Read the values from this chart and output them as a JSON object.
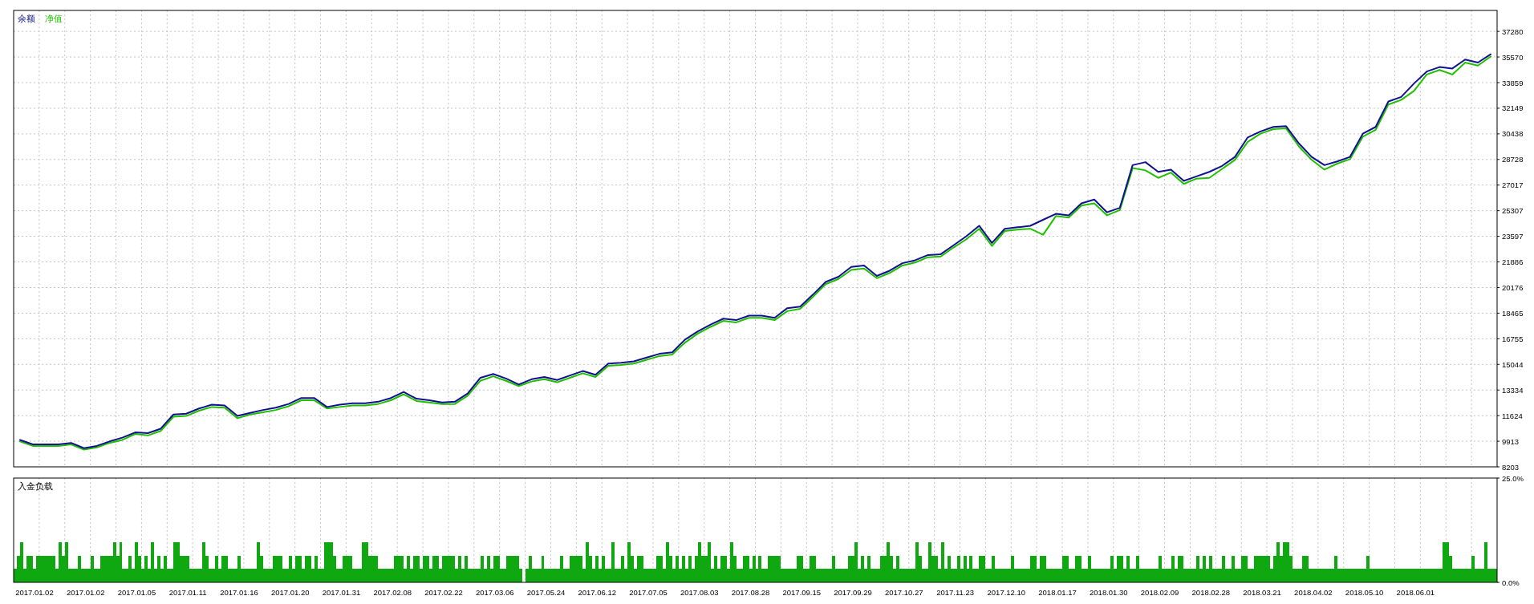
{
  "chart_data": [
    {
      "type": "line",
      "categories": [
        null,
        "2017.01.02",
        null,
        null,
        null,
        "2017.01.02",
        null,
        null,
        null,
        "2017.01.05",
        null,
        null,
        null,
        "2017.01.11",
        null,
        null,
        null,
        "2017.01.16",
        null,
        null,
        null,
        "2017.01.20",
        null,
        null,
        null,
        "2017.01.31",
        null,
        null,
        null,
        "2017.02.08",
        null,
        null,
        null,
        "2017.02.22",
        null,
        null,
        null,
        "2017.03.06",
        null,
        null,
        null,
        "2017.05.24",
        null,
        null,
        null,
        "2017.06.12",
        null,
        null,
        null,
        "2017.07.05",
        null,
        null,
        null,
        "2017.08.03",
        null,
        null,
        null,
        "2017.08.28",
        null,
        null,
        null,
        "2017.09.15",
        null,
        null,
        null,
        "2017.09.29",
        null,
        null,
        null,
        "2017.10.27",
        null,
        null,
        null,
        "2017.11.23",
        null,
        null,
        null,
        "2017.12.10",
        null,
        null,
        null,
        "2018.01.17",
        null,
        null,
        null,
        "2018.01.30",
        null,
        null,
        null,
        "2018.02.09",
        null,
        null,
        null,
        "2018.02.28",
        null,
        null,
        null,
        "2018.03.21",
        null,
        null,
        null,
        "2018.04.02",
        null,
        null,
        null,
        "2018.05.10",
        null,
        null,
        null,
        "2018.06.01",
        null,
        null,
        null,
        null,
        null,
        null
      ],
      "series": [
        {
          "name": "余额",
          "color": "#101090",
          "values": [
            10000,
            9700,
            9700,
            9700,
            9800,
            9450,
            9600,
            9900,
            10150,
            10500,
            10450,
            10750,
            11700,
            11750,
            12100,
            12350,
            12300,
            11600,
            11800,
            12000,
            12150,
            12400,
            12800,
            12800,
            12200,
            12350,
            12450,
            12450,
            12550,
            12800,
            13200,
            12750,
            12650,
            12500,
            12550,
            13100,
            14150,
            14400,
            14100,
            13700,
            14050,
            14200,
            14000,
            14300,
            14600,
            14350,
            15100,
            15150,
            15250,
            15500,
            15750,
            15850,
            16700,
            17250,
            17700,
            18100,
            18000,
            18300,
            18300,
            18150,
            18800,
            18900,
            19700,
            20550,
            20900,
            21550,
            21650,
            20950,
            21300,
            21800,
            22000,
            22350,
            22400,
            23000,
            23600,
            24300,
            23150,
            24100,
            24200,
            24300,
            24700,
            25100,
            25000,
            25800,
            26050,
            25200,
            25500,
            28350,
            28550,
            27900,
            28050,
            27300,
            27600,
            27900,
            28300,
            28900,
            30200,
            30600,
            30900,
            30950,
            29800,
            28900,
            28350,
            28600,
            28900,
            30450,
            30900,
            32600,
            32900,
            33800,
            34600,
            34900,
            34800,
            35400,
            35200,
            35750
          ]
        },
        {
          "name": "净值",
          "color": "#20c000",
          "values": [
            9900,
            9600,
            9600,
            9600,
            9700,
            9350,
            9500,
            9800,
            10000,
            10400,
            10300,
            10600,
            11550,
            11600,
            11950,
            12200,
            12150,
            11450,
            11700,
            11850,
            12000,
            12250,
            12650,
            12650,
            12100,
            12200,
            12300,
            12300,
            12400,
            12650,
            13050,
            12600,
            12500,
            12400,
            12400,
            12950,
            13950,
            14250,
            13950,
            13600,
            13900,
            14050,
            13850,
            14150,
            14450,
            14200,
            14950,
            15000,
            15100,
            15350,
            15600,
            15700,
            16500,
            17100,
            17550,
            17950,
            17850,
            18150,
            18150,
            18000,
            18600,
            18750,
            19550,
            20400,
            20750,
            21350,
            21450,
            20800,
            21150,
            21650,
            21850,
            22200,
            22250,
            22850,
            23400,
            24100,
            22950,
            23950,
            24050,
            24100,
            23700,
            24950,
            24850,
            25650,
            25800,
            25000,
            25350,
            28150,
            28000,
            27500,
            27850,
            27100,
            27450,
            27500,
            28100,
            28700,
            29900,
            30450,
            30750,
            30800,
            29600,
            28700,
            28050,
            28450,
            28750,
            30250,
            30700,
            32400,
            32700,
            33300,
            34400,
            34700,
            34400,
            35200,
            35000,
            35600
          ]
        }
      ],
      "ylim": [
        8203,
        38680
      ],
      "yticks": [
        8203,
        9913,
        11624,
        13334,
        15044,
        16755,
        18465,
        20176,
        21886,
        23597,
        25307,
        27017,
        28728,
        30438,
        32149,
        33859,
        35570,
        37280
      ],
      "grid": true,
      "legend": "top left",
      "tick_labels": "y"
    },
    {
      "type": "bar",
      "title": "入金负载",
      "categories": [
        null,
        null,
        null,
        null,
        null,
        null,
        "2017.01.02",
        null,
        null,
        null,
        null,
        null,
        null,
        null,
        null,
        null,
        null,
        null,
        null,
        null,
        null,
        null,
        "2017.01.02",
        null,
        null,
        null,
        null,
        null,
        null,
        null,
        null,
        null,
        null,
        null,
        null,
        null,
        null,
        null,
        "2017.01.05",
        null,
        null,
        null,
        null,
        null,
        null,
        null,
        null,
        null,
        null,
        null,
        null,
        null,
        null,
        null,
        "2017.01.11",
        null,
        null,
        null,
        null,
        null,
        null,
        null,
        null,
        null,
        null,
        null,
        null,
        null,
        null,
        null,
        "2017.01.16",
        null,
        null,
        null,
        null,
        null,
        null,
        null,
        null,
        null,
        null,
        null,
        null,
        null,
        null,
        null,
        "2017.01.20",
        null,
        null,
        null,
        null,
        null,
        null,
        null,
        null,
        null,
        null,
        null,
        null,
        null,
        null,
        null,
        "2017.01.31",
        null,
        null,
        null,
        null,
        null,
        null,
        null,
        null,
        null,
        null,
        null,
        null,
        null,
        null,
        null,
        "2017.02.08",
        null,
        null,
        null,
        null,
        null,
        null,
        null,
        null,
        null,
        null,
        null,
        null,
        null,
        null,
        null,
        "2017.02.22",
        null,
        null,
        null,
        null,
        null,
        null,
        null,
        null,
        null,
        null,
        null,
        null,
        null,
        null,
        null,
        "2017.03.06",
        null,
        null,
        null,
        null,
        null,
        null,
        null,
        null,
        null,
        null,
        null,
        null,
        null,
        null,
        null,
        "2017.05.24",
        null,
        null,
        null,
        null,
        null,
        null,
        null,
        null,
        null,
        null,
        null,
        null,
        null,
        null,
        null,
        "2017.06.12",
        null,
        null,
        null,
        null,
        null,
        null,
        null,
        null,
        null,
        null,
        null,
        null,
        null,
        null,
        null,
        "2017.07.05",
        null,
        null,
        null,
        null,
        null,
        null,
        null,
        null,
        null,
        null,
        null,
        null,
        null,
        null,
        null,
        "2017.08.03",
        null,
        null,
        null,
        null,
        null,
        null,
        null,
        null,
        null,
        null,
        null,
        null,
        null,
        null,
        null,
        "2017.08.28",
        null,
        null,
        null,
        null,
        null,
        null,
        null,
        null,
        null,
        null,
        null,
        null,
        null,
        null,
        null,
        "2017.09.15",
        null,
        null,
        null,
        null,
        null,
        null,
        null,
        null,
        null,
        null,
        null,
        null,
        null,
        null,
        null,
        "2017.09.29",
        null,
        null,
        null,
        null,
        null,
        null,
        null,
        null,
        null,
        null,
        null,
        null,
        null,
        null,
        null,
        "2017.10.27",
        null,
        null,
        null,
        null,
        null,
        null,
        null,
        null,
        null,
        null,
        null,
        null,
        null,
        null,
        null,
        "2017.11.23",
        null,
        null,
        null,
        null,
        null,
        null,
        null,
        null,
        null,
        null,
        null,
        null,
        null,
        null,
        null,
        "2017.12.10",
        null,
        null,
        null,
        null,
        null,
        null,
        null,
        null,
        null,
        null,
        null,
        null,
        null,
        null,
        null,
        "2018.01.17",
        null,
        null,
        null,
        null,
        null,
        null,
        null,
        null,
        null,
        null,
        null,
        null,
        null,
        null,
        null,
        "2018.01.30",
        null,
        null,
        null,
        null,
        null,
        null,
        null,
        null,
        null,
        null,
        null,
        null,
        null,
        null,
        null,
        "2018.02.09",
        null,
        null,
        null,
        null,
        null,
        null,
        null,
        null,
        null,
        null,
        null,
        null,
        null,
        null,
        null,
        "2018.02.28",
        null,
        null,
        null,
        null,
        null,
        null,
        null,
        null,
        null,
        null,
        null,
        null,
        null,
        null,
        null,
        "2018.03.21",
        null,
        null,
        null,
        null,
        null,
        null,
        null,
        null,
        null,
        null,
        null,
        null,
        null,
        null,
        null,
        "2018.04.02",
        null,
        null,
        null,
        null,
        null,
        null,
        null,
        null,
        null,
        null,
        null,
        null,
        null,
        null,
        null,
        "2018.05.10",
        null,
        null,
        null,
        null,
        null,
        null,
        null,
        null,
        null,
        null,
        null,
        null,
        null,
        null,
        null,
        "2018.06.01",
        null,
        null,
        null,
        null,
        null,
        null,
        null,
        null,
        null,
        null,
        null,
        null,
        null,
        null,
        null,
        null,
        null,
        null,
        null,
        null,
        null,
        null,
        null,
        null,
        null
      ],
      "values": [
        3.2,
        6.4,
        9.6,
        3.2,
        6.4,
        6.4,
        3.2,
        6.4,
        6.4,
        6.4,
        6.4,
        6.4,
        6.4,
        3.2,
        9.6,
        6.4,
        9.6,
        3.2,
        3.2,
        3.2,
        6.4,
        3.2,
        3.2,
        3.2,
        6.4,
        3.2,
        3.2,
        6.4,
        6.4,
        6.4,
        6.4,
        9.6,
        6.4,
        9.6,
        3.2,
        3.2,
        6.4,
        3.2,
        9.6,
        6.4,
        3.2,
        6.4,
        3.2,
        9.6,
        3.2,
        6.4,
        3.2,
        6.4,
        3.2,
        3.2,
        9.6,
        9.6,
        6.4,
        6.4,
        6.4,
        3.2,
        3.2,
        3.2,
        3.2,
        9.6,
        6.4,
        3.2,
        3.2,
        6.4,
        3.2,
        6.4,
        6.4,
        3.2,
        3.2,
        3.2,
        6.4,
        3.2,
        3.2,
        3.2,
        3.2,
        3.2,
        9.6,
        6.4,
        3.2,
        3.2,
        3.2,
        6.4,
        6.4,
        6.4,
        3.2,
        3.2,
        6.4,
        3.2,
        6.4,
        6.4,
        3.2,
        6.4,
        6.4,
        3.2,
        6.4,
        3.2,
        3.2,
        9.6,
        9.6,
        9.6,
        6.4,
        3.2,
        3.2,
        6.4,
        6.4,
        6.4,
        3.2,
        3.2,
        3.2,
        9.6,
        9.6,
        6.4,
        6.4,
        6.4,
        3.2,
        3.2,
        3.2,
        3.2,
        3.2,
        6.4,
        6.4,
        6.4,
        3.2,
        6.4,
        3.2,
        6.4,
        6.4,
        3.2,
        6.4,
        6.4,
        3.2,
        6.4,
        6.4,
        3.2,
        6.4,
        6.4,
        6.4,
        6.4,
        3.2,
        6.4,
        3.2,
        6.4,
        3.2,
        3.2,
        3.2,
        3.2,
        6.4,
        3.2,
        6.4,
        3.2,
        6.4,
        6.4,
        3.2,
        3.2,
        6.4,
        6.4,
        6.4,
        6.4,
        3.2,
        null,
        3.2,
        6.4,
        3.2,
        3.2,
        3.2,
        6.4,
        3.2,
        3.2,
        3.2,
        3.2,
        3.2,
        6.4,
        3.2,
        3.2,
        6.4,
        6.4,
        6.4,
        6.4,
        3.2,
        9.6,
        6.4,
        3.2,
        6.4,
        3.2,
        6.4,
        3.2,
        3.2,
        9.6,
        3.2,
        3.2,
        6.4,
        3.2,
        9.6,
        6.4,
        3.2,
        6.4,
        6.4,
        3.2,
        3.2,
        3.2,
        3.2,
        6.4,
        6.4,
        3.2,
        9.6,
        6.4,
        3.2,
        6.4,
        3.2,
        6.4,
        3.2,
        6.4,
        3.2,
        6.4,
        9.6,
        6.4,
        6.4,
        9.6,
        3.2,
        6.4,
        3.2,
        6.4,
        6.4,
        3.2,
        9.6,
        6.4,
        3.2,
        3.2,
        6.4,
        6.4,
        3.2,
        6.4,
        3.2,
        6.4,
        3.2,
        3.2,
        6.4,
        6.4,
        6.4,
        6.4,
        3.2,
        3.2,
        3.2,
        3.2,
        3.2,
        6.4,
        6.4,
        3.2,
        3.2,
        6.4,
        6.4,
        3.2,
        3.2,
        3.2,
        3.2,
        3.2,
        6.4,
        3.2,
        3.2,
        3.2,
        3.2,
        6.4,
        6.4,
        9.6,
        3.2,
        6.4,
        3.2,
        6.4,
        3.2,
        3.2,
        3.2,
        6.4,
        6.4,
        9.6,
        6.4,
        3.2,
        6.4,
        3.2,
        3.2,
        3.2,
        3.2,
        3.2,
        9.6,
        6.4,
        3.2,
        3.2,
        9.6,
        6.4,
        6.4,
        3.2,
        9.6,
        3.2,
        6.4,
        3.2,
        3.2,
        6.4,
        3.2,
        6.4,
        3.2,
        6.4,
        3.2,
        3.2,
        6.4,
        6.4,
        3.2,
        3.2,
        6.4,
        3.2,
        3.2,
        3.2,
        3.2,
        3.2,
        6.4,
        3.2,
        3.2,
        3.2,
        3.2,
        3.2,
        6.4,
        6.4,
        3.2,
        6.4,
        6.4,
        3.2,
        3.2,
        3.2,
        3.2,
        3.2,
        6.4,
        6.4,
        3.2,
        3.2,
        6.4,
        6.4,
        3.2,
        3.2,
        6.4,
        3.2,
        3.2,
        3.2,
        3.2,
        3.2,
        3.2,
        6.4,
        3.2,
        6.4,
        6.4,
        3.2,
        6.4,
        3.2,
        3.2,
        6.4,
        3.2,
        3.2,
        3.2,
        3.2,
        3.2,
        3.2,
        6.4,
        3.2,
        3.2,
        3.2,
        6.4,
        3.2,
        6.4,
        6.4,
        3.2,
        3.2,
        3.2,
        3.2,
        6.4,
        3.2,
        6.4,
        3.2,
        6.4,
        3.2,
        3.2,
        3.2,
        6.4,
        3.2,
        3.2,
        6.4,
        3.2,
        3.2,
        6.4,
        6.4,
        3.2,
        3.2,
        6.4,
        6.4,
        6.4,
        6.4,
        6.4,
        3.2,
        6.4,
        9.6,
        6.4,
        9.6,
        9.6,
        6.4,
        3.2,
        3.2,
        3.2,
        6.4,
        6.4,
        3.2,
        3.2,
        3.2,
        3.2,
        3.2,
        3.2,
        3.2,
        3.2,
        6.4,
        3.2,
        3.2,
        3.2,
        3.2,
        3.2,
        3.2,
        3.2,
        3.2,
        3.2,
        6.4,
        3.2,
        3.2,
        3.2,
        3.2,
        3.2,
        3.2,
        3.2,
        3.2,
        3.2,
        3.2,
        3.2,
        3.2,
        3.2,
        3.2,
        3.2,
        3.2,
        3.2,
        3.2,
        3.2,
        3.2,
        3.2,
        3.2,
        3.2,
        9.6,
        9.6,
        6.4,
        3.2,
        3.2,
        3.2,
        3.2,
        3.2,
        3.2,
        6.4,
        3.2,
        3.2,
        3.2,
        9.6,
        3.2,
        3.2,
        3.2
      ],
      "color": "#10a810",
      "ylim": [
        0,
        25
      ],
      "yticks": [
        {
          "value": 0,
          "label": "0.0%"
        },
        {
          "value": 25,
          "label": "25.0%"
        }
      ],
      "grid": "x"
    }
  ]
}
